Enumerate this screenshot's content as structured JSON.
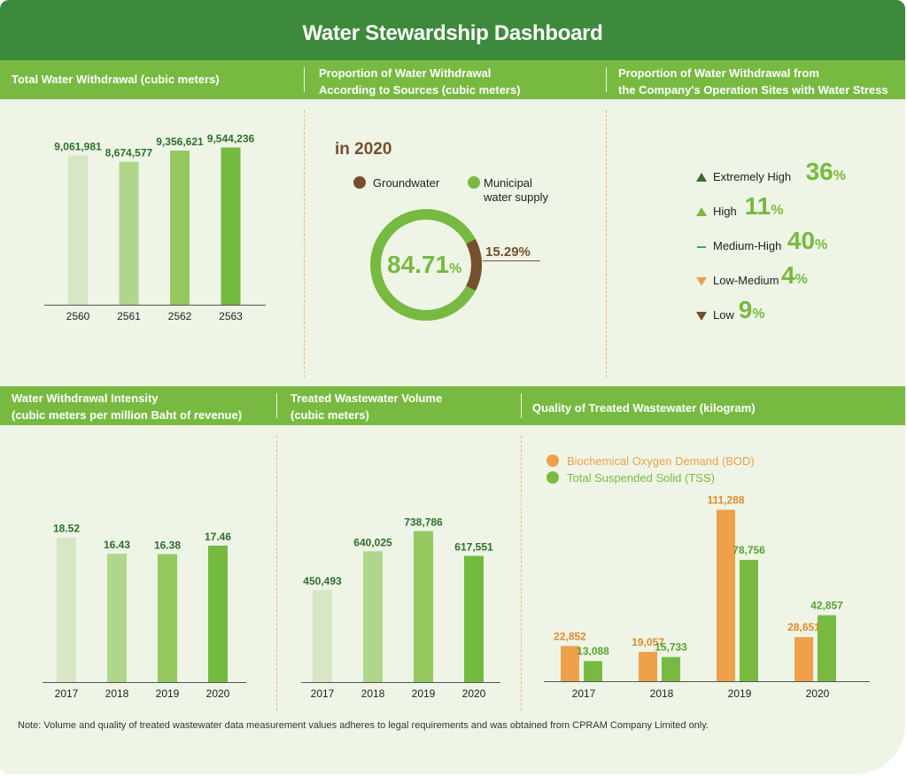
{
  "title": "Water Stewardship Dashboard",
  "headers": {
    "total_withdrawal": "Total Water Withdrawal (cubic meters)",
    "by_source_1": "Proportion of Water Withdrawal",
    "by_source_2": "According to Sources (cubic meters)",
    "stress_1": "Proportion of Water Withdrawal from",
    "stress_2": "the Company's Operation Sites with Water Stress",
    "intensity_1": "Water Withdrawal Intensity",
    "intensity_2": "(cubic meters per million Baht of revenue)",
    "treated_1": "Treated Wastewater Volume",
    "treated_2": "(cubic meters)",
    "quality": "Quality of Treated Wastewater (kilogram)"
  },
  "note": "Note: Volume and quality of treated wastewater data measurement values adheres to legal requirements and was obtained from CPRAM Company Limited only.",
  "donut": {
    "year_label": "in 2020",
    "legend_ground": "Groundwater",
    "legend_muni_1": "Municipal",
    "legend_muni_2": "water supply",
    "muni_value": "84.71",
    "ground_value": "15.29%",
    "pct": "%"
  },
  "stress": {
    "items": [
      {
        "label": "Extremely High",
        "value": "36",
        "icon": "triangle-up-dark-icon"
      },
      {
        "label": "High",
        "value": "11",
        "icon": "triangle-up-light-icon"
      },
      {
        "label": "Medium-High",
        "value": "40",
        "icon": "dash-icon"
      },
      {
        "label": "Low-Medium",
        "value": "4",
        "icon": "triangle-down-orange-icon"
      },
      {
        "label": "Low",
        "value": "9",
        "icon": "triangle-down-brown-icon"
      }
    ],
    "pct": "%"
  },
  "colors": {
    "green_dark": "#3e8a3c",
    "green": "#78ba41",
    "orange": "#eea04a",
    "brown": "#75502f",
    "bar_shades": [
      "#d7e6c3",
      "#b0d68b",
      "#95c95f",
      "#74ba3f"
    ]
  },
  "chart_data": [
    {
      "id": "total",
      "type": "bar",
      "categories": [
        "2560",
        "2561",
        "2562",
        "2563"
      ],
      "values": [
        9061981,
        8674577,
        9356621,
        9544236
      ],
      "labels": [
        "9,061,981",
        "8,674,577",
        "9,356,621",
        "9,544,236"
      ],
      "title": "Total Water Withdrawal (cubic meters)"
    },
    {
      "id": "sources",
      "type": "pie",
      "categories": [
        "Groundwater",
        "Municipal water supply"
      ],
      "values": [
        15.29,
        84.71
      ],
      "title": "Proportion of Water Withdrawal According to Sources (cubic meters)"
    },
    {
      "id": "stress",
      "type": "table",
      "categories": [
        "Extremely High",
        "High",
        "Medium-High",
        "Low-Medium",
        "Low"
      ],
      "values": [
        36,
        11,
        40,
        4,
        9
      ],
      "title": "Proportion of Water Withdrawal from the Company's Operation Sites with Water Stress"
    },
    {
      "id": "intensity",
      "type": "bar",
      "categories": [
        "2017",
        "2018",
        "2019",
        "2020"
      ],
      "values": [
        18.52,
        16.43,
        16.38,
        17.46
      ],
      "labels": [
        "18.52",
        "16.43",
        "16.38",
        "17.46"
      ],
      "title": "Water Withdrawal Intensity (cubic meters per million Baht of revenue)"
    },
    {
      "id": "treated",
      "type": "bar",
      "categories": [
        "2017",
        "2018",
        "2019",
        "2020"
      ],
      "values": [
        450493,
        640025,
        738786,
        617551
      ],
      "labels": [
        "450,493",
        "640,025",
        "738,786",
        "617,551"
      ],
      "title": "Treated Wastewater Volume (cubic meters)"
    },
    {
      "id": "quality",
      "type": "bar",
      "categories": [
        "2017",
        "2018",
        "2019",
        "2020"
      ],
      "series": [
        {
          "name": "Biochemical Oxygen Demand (BOD)",
          "values": [
            22852,
            19057,
            111288,
            28651
          ],
          "labels": [
            "22,852",
            "19,057",
            "111,288",
            "28,651"
          ]
        },
        {
          "name": "Total Suspended Solid (TSS)",
          "values": [
            13088,
            15733,
            78756,
            42857
          ],
          "labels": [
            "13,088",
            "15,733",
            "78,756",
            "42,857"
          ]
        }
      ],
      "title": "Quality of Treated Wastewater (kilogram)"
    }
  ]
}
